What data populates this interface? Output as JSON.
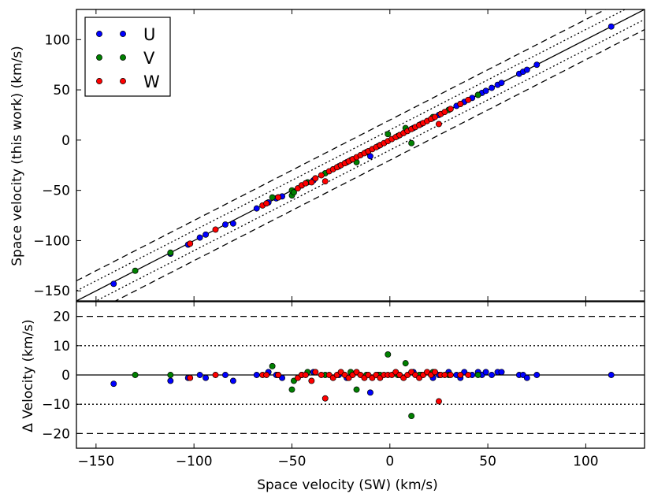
{
  "chart_data": [
    {
      "type": "scatter",
      "panel": "top",
      "xlabel": "",
      "ylabel": "Space velocity (this work) (km/s)",
      "xlim": [
        -160,
        130
      ],
      "ylim": [
        -160,
        130
      ],
      "yticks": [
        -150,
        -100,
        -50,
        0,
        50,
        100
      ],
      "yticklabels": [
        "−150",
        "−100",
        "−50",
        "0",
        "50",
        "100"
      ],
      "xtick_labels_visible": false,
      "legend": {
        "placement": "top-left",
        "entries": [
          "U",
          "V",
          "W"
        ]
      },
      "reference_lines": [
        {
          "style": "solid",
          "offset": 0
        },
        {
          "style": "dotted",
          "offset": 10
        },
        {
          "style": "dotted",
          "offset": -10
        },
        {
          "style": "dashed",
          "offset": 20
        },
        {
          "style": "dashed",
          "offset": -20
        }
      ],
      "series": [
        {
          "name": "U",
          "color": "#0000ff",
          "points": [
            [
              -141,
              -143
            ],
            [
              -112,
              -113
            ],
            [
              -103,
              -104
            ],
            [
              -97,
              -97
            ],
            [
              -94,
              -94
            ],
            [
              -84,
              -84
            ],
            [
              -80,
              -83
            ],
            [
              -68,
              -68
            ],
            [
              -62,
              -62
            ],
            [
              -58,
              -58
            ],
            [
              -55,
              -56
            ],
            [
              -45,
              -45
            ],
            [
              -39,
              -40
            ],
            [
              -26,
              -26
            ],
            [
              -22,
              -22
            ],
            [
              -10,
              -16
            ],
            [
              -6,
              -6
            ],
            [
              5,
              5
            ],
            [
              12,
              12
            ],
            [
              16,
              16
            ],
            [
              22,
              22
            ],
            [
              25,
              25
            ],
            [
              30,
              30
            ],
            [
              34,
              34
            ],
            [
              36,
              36
            ],
            [
              38,
              38
            ],
            [
              42,
              42
            ],
            [
              45,
              45
            ],
            [
              47,
              47
            ],
            [
              49,
              49
            ],
            [
              52,
              52
            ],
            [
              55,
              55
            ],
            [
              57,
              57
            ],
            [
              66,
              66
            ],
            [
              68,
              68
            ],
            [
              70,
              70
            ],
            [
              75,
              75
            ],
            [
              113,
              113
            ]
          ]
        },
        {
          "name": "V",
          "color": "#008000",
          "points": [
            [
              -130,
              -130
            ],
            [
              -112,
              -112
            ],
            [
              -60,
              -57
            ],
            [
              -57,
              -57
            ],
            [
              -50,
              -55
            ],
            [
              -50,
              -50
            ],
            [
              -49,
              -52
            ],
            [
              -45,
              -45
            ],
            [
              -42,
              -42
            ],
            [
              -33,
              -33
            ],
            [
              -20,
              -20
            ],
            [
              -17,
              -22
            ],
            [
              -12,
              -12
            ],
            [
              -5,
              -5
            ],
            [
              -1,
              6
            ],
            [
              4,
              4
            ],
            [
              8,
              12
            ],
            [
              11,
              -3
            ],
            [
              15,
              15
            ],
            [
              22,
              23
            ],
            [
              30,
              30
            ],
            [
              45,
              45
            ]
          ]
        },
        {
          "name": "W",
          "color": "#ff0000",
          "points": [
            [
              -102,
              -103
            ],
            [
              -89,
              -89
            ],
            [
              -65,
              -65
            ],
            [
              -63,
              -63
            ],
            [
              -57,
              -57
            ],
            [
              -47,
              -48
            ],
            [
              -45,
              -45
            ],
            [
              -43,
              -43
            ],
            [
              -40,
              -42
            ],
            [
              -38,
              -38
            ],
            [
              -35,
              -35
            ],
            [
              -33,
              -41
            ],
            [
              -31,
              -31
            ],
            [
              -29,
              -29
            ],
            [
              -27,
              -27
            ],
            [
              -25,
              -25
            ],
            [
              -23,
              -23
            ],
            [
              -21,
              -21
            ],
            [
              -19,
              -19
            ],
            [
              -17,
              -17
            ],
            [
              -15,
              -15
            ],
            [
              -13,
              -13
            ],
            [
              -11,
              -11
            ],
            [
              -9,
              -9
            ],
            [
              -7,
              -7
            ],
            [
              -5,
              -5
            ],
            [
              -3,
              -3
            ],
            [
              -1,
              -1
            ],
            [
              1,
              1
            ],
            [
              3,
              3
            ],
            [
              5,
              5
            ],
            [
              7,
              7
            ],
            [
              9,
              9
            ],
            [
              11,
              11
            ],
            [
              13,
              13
            ],
            [
              15,
              15
            ],
            [
              17,
              17
            ],
            [
              19,
              19
            ],
            [
              21,
              21
            ],
            [
              23,
              23
            ],
            [
              25,
              16
            ],
            [
              26,
              26
            ],
            [
              28,
              28
            ],
            [
              31,
              31
            ],
            [
              36,
              36
            ],
            [
              40,
              40
            ]
          ]
        }
      ]
    },
    {
      "type": "scatter",
      "panel": "bottom",
      "xlabel": "Space velocity (SW) (km/s)",
      "ylabel": "Δ Velocity (km/s)",
      "xlim": [
        -160,
        130
      ],
      "ylim": [
        -25,
        25
      ],
      "xticks": [
        -150,
        -100,
        -50,
        0,
        50,
        100
      ],
      "xticklabels": [
        "−150",
        "−100",
        "−50",
        "0",
        "50",
        "100"
      ],
      "yticks": [
        -20,
        -10,
        0,
        10,
        20
      ],
      "yticklabels": [
        "−20",
        "−10",
        "0",
        "10",
        "20"
      ],
      "reference_lines": [
        {
          "style": "solid",
          "y": 0
        },
        {
          "style": "dotted",
          "y": 10
        },
        {
          "style": "dotted",
          "y": -10
        },
        {
          "style": "dashed",
          "y": 20
        },
        {
          "style": "dashed",
          "y": -20
        }
      ],
      "series": [
        {
          "name": "U",
          "color": "#0000ff",
          "points": [
            [
              -141,
              -3
            ],
            [
              -112,
              -2
            ],
            [
              -103,
              -1
            ],
            [
              -97,
              0
            ],
            [
              -94,
              -1
            ],
            [
              -84,
              0
            ],
            [
              -80,
              -2
            ],
            [
              -68,
              0
            ],
            [
              -62,
              1
            ],
            [
              -58,
              0
            ],
            [
              -55,
              -1
            ],
            [
              -45,
              0
            ],
            [
              -39,
              1
            ],
            [
              -26,
              0
            ],
            [
              -22,
              -1
            ],
            [
              -10,
              -6
            ],
            [
              -6,
              0
            ],
            [
              5,
              0
            ],
            [
              12,
              1
            ],
            [
              16,
              0
            ],
            [
              22,
              -1
            ],
            [
              25,
              0
            ],
            [
              30,
              1
            ],
            [
              34,
              0
            ],
            [
              36,
              -1
            ],
            [
              38,
              1
            ],
            [
              42,
              0
            ],
            [
              45,
              1
            ],
            [
              47,
              0
            ],
            [
              49,
              1
            ],
            [
              52,
              0
            ],
            [
              55,
              1
            ],
            [
              57,
              1
            ],
            [
              66,
              0
            ],
            [
              68,
              0
            ],
            [
              70,
              -1
            ],
            [
              75,
              0
            ],
            [
              113,
              0
            ]
          ]
        },
        {
          "name": "V",
          "color": "#008000",
          "points": [
            [
              -130,
              0
            ],
            [
              -112,
              0
            ],
            [
              -60,
              3
            ],
            [
              -57,
              0
            ],
            [
              -50,
              -5
            ],
            [
              -49,
              -2
            ],
            [
              -45,
              0
            ],
            [
              -42,
              1
            ],
            [
              -33,
              0
            ],
            [
              -20,
              1
            ],
            [
              -17,
              -5
            ],
            [
              -12,
              0
            ],
            [
              -5,
              0
            ],
            [
              -1,
              7
            ],
            [
              4,
              0
            ],
            [
              8,
              4
            ],
            [
              11,
              -14
            ],
            [
              15,
              0
            ],
            [
              22,
              1
            ],
            [
              30,
              0
            ],
            [
              45,
              0
            ]
          ]
        },
        {
          "name": "W",
          "color": "#ff0000",
          "points": [
            [
              -102,
              -1
            ],
            [
              -89,
              0
            ],
            [
              -65,
              0
            ],
            [
              -63,
              0
            ],
            [
              -57,
              0
            ],
            [
              -47,
              -1
            ],
            [
              -45,
              0
            ],
            [
              -43,
              0
            ],
            [
              -40,
              -2
            ],
            [
              -38,
              1
            ],
            [
              -35,
              0
            ],
            [
              -33,
              -8
            ],
            [
              -31,
              0
            ],
            [
              -29,
              -1
            ],
            [
              -27,
              0
            ],
            [
              -25,
              1
            ],
            [
              -23,
              0
            ],
            [
              -21,
              -1
            ],
            [
              -19,
              0
            ],
            [
              -17,
              1
            ],
            [
              -15,
              0
            ],
            [
              -13,
              -1
            ],
            [
              -11,
              0
            ],
            [
              -9,
              -1
            ],
            [
              -7,
              0
            ],
            [
              -5,
              -1
            ],
            [
              -3,
              0
            ],
            [
              -1,
              0
            ],
            [
              1,
              0
            ],
            [
              3,
              1
            ],
            [
              5,
              0
            ],
            [
              7,
              -1
            ],
            [
              9,
              0
            ],
            [
              11,
              1
            ],
            [
              13,
              0
            ],
            [
              15,
              -1
            ],
            [
              17,
              0
            ],
            [
              19,
              1
            ],
            [
              21,
              0
            ],
            [
              23,
              1
            ],
            [
              25,
              -9
            ],
            [
              26,
              0
            ],
            [
              28,
              0
            ],
            [
              31,
              0
            ],
            [
              36,
              0
            ],
            [
              40,
              0
            ]
          ]
        }
      ]
    }
  ]
}
